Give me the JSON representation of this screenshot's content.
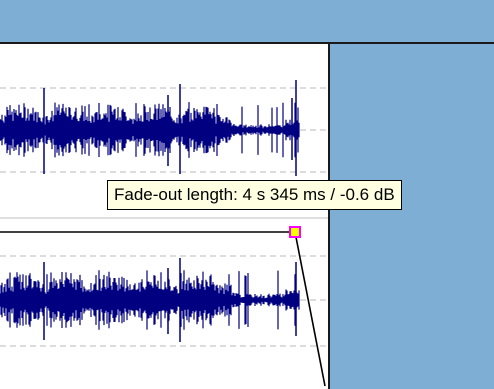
{
  "tooltip": {
    "text": "Fade-out length: 4 s 345 ms / -0.6 dB"
  },
  "colors": {
    "background_blue": "#7eaed3",
    "waveform": "#000080",
    "track_background": "#ffffff",
    "handle_fill": "#ffff00",
    "handle_border": "#ff00ff",
    "tooltip_background": "#ffffe1"
  },
  "icons": {
    "fade_handle": "fade-handle-icon"
  }
}
